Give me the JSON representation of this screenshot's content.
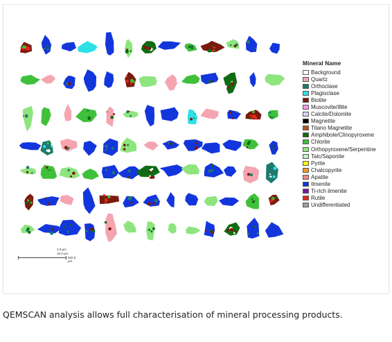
{
  "legend": {
    "title": "Mineral Name",
    "items": [
      {
        "label": "Background",
        "color": "#ffffff"
      },
      {
        "label": "Quartz",
        "color": "#f4a5b0"
      },
      {
        "label": "Orthoclase",
        "color": "#1e7a6b"
      },
      {
        "label": "Plagioclase",
        "color": "#2de0e6"
      },
      {
        "label": "Biotite",
        "color": "#7a1a0f"
      },
      {
        "label": "Muscovite/Illite",
        "color": "#f29ae6"
      },
      {
        "label": "Calcite/Dolomite",
        "color": "#d9d2f4"
      },
      {
        "label": "Magnetite",
        "color": "#000000"
      },
      {
        "label": "Titano Magnetite",
        "color": "#b5561c"
      },
      {
        "label": "Amphibole/Clinopyroxene",
        "color": "#0f6b12"
      },
      {
        "label": "Chlorite",
        "color": "#3fc03a"
      },
      {
        "label": "Orthopyroxene/Serpentine",
        "color": "#8ee57e"
      },
      {
        "label": "Talc/Saponite",
        "color": "#bff0c8"
      },
      {
        "label": "Pyrite",
        "color": "#f5f50a"
      },
      {
        "label": "Chalcopyrite",
        "color": "#f59a24"
      },
      {
        "label": "Apatite",
        "color": "#f08a80"
      },
      {
        "label": "Ilmenite",
        "color": "#1336dc"
      },
      {
        "label": "Ti-rich ilmenite",
        "color": "#7a1a9a"
      },
      {
        "label": "Rutile",
        "color": "#e8261c"
      },
      {
        "label": "Undifferentiated",
        "color": "#9e9e9e"
      }
    ]
  },
  "scale": {
    "line1": "2.9 µm",
    "line2": "15.0 µm",
    "bar_label": "500.0 µm"
  },
  "caption": "QEMSCAN analysis allows full characterisation of mineral processing products."
}
